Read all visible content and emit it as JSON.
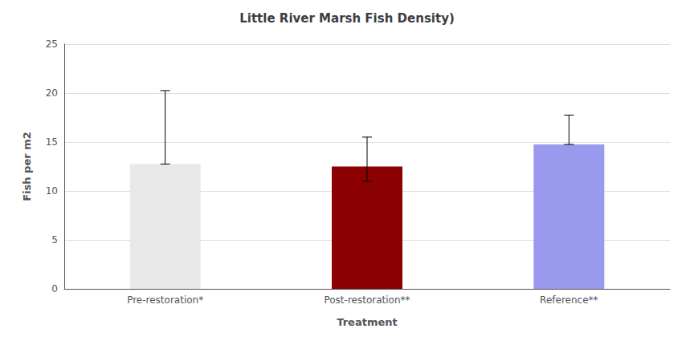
{
  "chart_data": {
    "type": "bar",
    "title": "Little River Marsh Fish Density)",
    "xlabel": "Treatment",
    "ylabel": "Fish per m2",
    "categories": [
      "Pre-restoration*",
      "Post-restoration**",
      "Reference**"
    ],
    "values": [
      12.75,
      12.5,
      14.75
    ],
    "errors_up": [
      7.5,
      3.0,
      3.0
    ],
    "errors_down": [
      0.0,
      1.5,
      0.0
    ],
    "colors": [
      "#e8e8e8",
      "#8b0000",
      "#9999ee"
    ],
    "ylim": [
      0,
      25
    ],
    "yticks": [
      0,
      5,
      10,
      15,
      20,
      25
    ],
    "grid": true
  }
}
